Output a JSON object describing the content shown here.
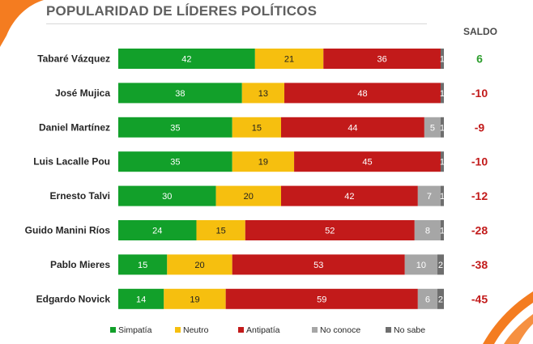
{
  "title": "POPULARIDAD DE LÍDERES POLÍTICOS",
  "saldo_header": "SALDO",
  "colors": {
    "simpatia": "#12a02a",
    "neutro": "#f6bf0f",
    "antipatia": "#c21a1a",
    "no_conoce": "#a6a6a6",
    "no_sabe": "#6e6e6e",
    "saldo_positive": "#2d9e2d",
    "saldo_negative": "#c21a1a",
    "accent": "#f47c20"
  },
  "chart_data": {
    "type": "bar",
    "orientation": "horizontal",
    "stacked": true,
    "title": "POPULARIDAD DE LÍDERES POLÍTICOS",
    "categories": [
      "Tabaré Vázquez",
      "José Mujica",
      "Daniel Martínez",
      "Luis Lacalle Pou",
      "Ernesto Talvi",
      "Guido Manini Ríos",
      "Pablo Mieres",
      "Edgardo Novick"
    ],
    "series": [
      {
        "name": "Simpatía",
        "key": "simpatia",
        "values": [
          42,
          38,
          35,
          35,
          30,
          24,
          15,
          14
        ]
      },
      {
        "name": "Neutro",
        "key": "neutro",
        "values": [
          21,
          13,
          15,
          19,
          20,
          15,
          20,
          19
        ]
      },
      {
        "name": "Antipatía",
        "key": "antipatia",
        "values": [
          36,
          48,
          44,
          45,
          42,
          52,
          53,
          59
        ]
      },
      {
        "name": "No conoce",
        "key": "no_conoce",
        "values": [
          0,
          0,
          5,
          0,
          7,
          8,
          10,
          6
        ]
      },
      {
        "name": "No sabe",
        "key": "no_sabe",
        "values": [
          1,
          1,
          1,
          1,
          1,
          1,
          2,
          2
        ]
      }
    ],
    "saldo": [
      6,
      -10,
      -9,
      -10,
      -12,
      -28,
      -38,
      -45
    ],
    "saldo_labels": [
      "6",
      "-10",
      "-9",
      "-10",
      "-12",
      "-28",
      "-38",
      "-45"
    ],
    "xlim": [
      0,
      100
    ],
    "legend_position": "bottom",
    "legend": [
      "Simpatía",
      "Neutro",
      "Antipatía",
      "No conoce",
      "No sabe"
    ]
  }
}
